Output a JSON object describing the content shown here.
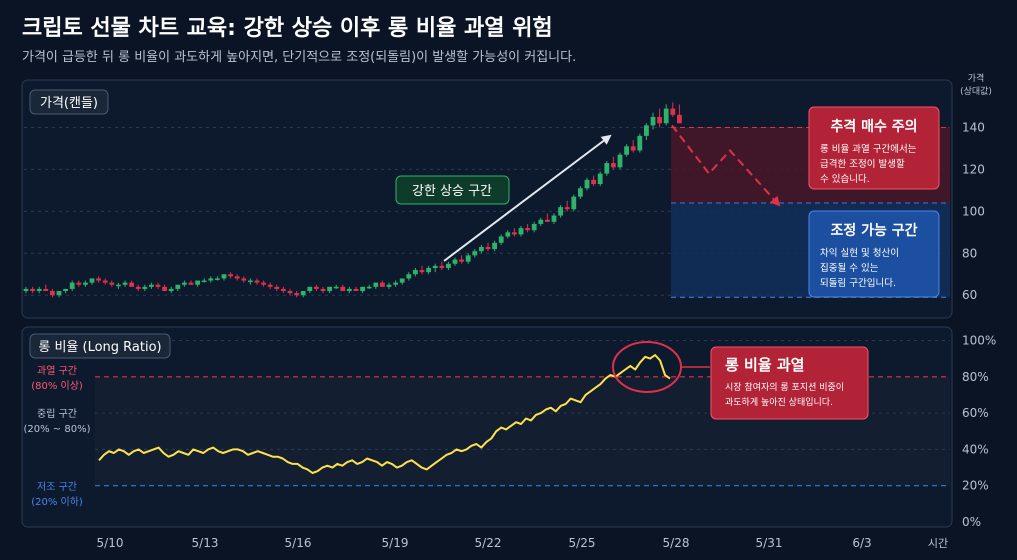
{
  "header": {
    "title": "크립토 선물 차트 교육: 강한 상승 이후 롱 비율 과열 위험",
    "subtitle": "가격이 급등한 뒤 롱 비율이 과도하게 높아지면, 단기적으로 조정(되돌림)이 발생할 가능성이 커집니다."
  },
  "colors": {
    "background": "#0b1424",
    "up_candle": "#2fb36b",
    "down_candle": "#e0314a",
    "ratio_line": "#ffe14d",
    "overheat": "#e0314a",
    "support": "#3a7bd5"
  },
  "chart_data": [
    {
      "type": "candlestick",
      "panel_label": "가격(캔들)",
      "y_axis_title": [
        "가격",
        "(상대값)"
      ],
      "ylim": [
        52,
        155
      ],
      "y_ticks": [
        60,
        80,
        100,
        120,
        140
      ],
      "x_ticks": [
        "5/10",
        "5/13",
        "5/16",
        "5/19",
        "5/22",
        "5/25",
        "5/28",
        "5/31",
        "6/3"
      ],
      "x_axis_title": "시간",
      "rise_label": "강한 상승 구간",
      "overheat_line": 140,
      "support_line": 59,
      "zone_boundary": 104,
      "forecast_path": [
        141,
        118,
        129,
        103
      ],
      "callouts": [
        {
          "title": "추격 매수 주의",
          "text": [
            "롱 비율 과열 구간에서는",
            "급격한 조정이 발생할",
            "수 있습니다."
          ]
        },
        {
          "title": "조정 가능 구간",
          "text": [
            "차익 실현 및 청산이",
            "집중될 수 있는",
            "되돌림 구간입니다."
          ]
        }
      ],
      "candles": [
        [
          62,
          64,
          61,
          63
        ],
        [
          63,
          64,
          61,
          62
        ],
        [
          62,
          64,
          61,
          63
        ],
        [
          63,
          65,
          62,
          62
        ],
        [
          62,
          63,
          59,
          60
        ],
        [
          60,
          62,
          59,
          62
        ],
        [
          62,
          63,
          61,
          63
        ],
        [
          63,
          67,
          62,
          66
        ],
        [
          66,
          67,
          64,
          65
        ],
        [
          65,
          67,
          64,
          66
        ],
        [
          66,
          68,
          65,
          68
        ],
        [
          68,
          69,
          66,
          67
        ],
        [
          67,
          68,
          65,
          66
        ],
        [
          66,
          67,
          64,
          65
        ],
        [
          65,
          66,
          63,
          65
        ],
        [
          65,
          67,
          64,
          66
        ],
        [
          66,
          67,
          64,
          64
        ],
        [
          64,
          65,
          62,
          63
        ],
        [
          63,
          65,
          62,
          64
        ],
        [
          64,
          66,
          63,
          65
        ],
        [
          65,
          66,
          63,
          64
        ],
        [
          64,
          65,
          62,
          62
        ],
        [
          62,
          64,
          61,
          63
        ],
        [
          63,
          65,
          62,
          65
        ],
        [
          65,
          67,
          64,
          66
        ],
        [
          66,
          67,
          65,
          65
        ],
        [
          65,
          67,
          64,
          67
        ],
        [
          67,
          68,
          66,
          67
        ],
        [
          67,
          69,
          66,
          68
        ],
        [
          68,
          69,
          67,
          68
        ],
        [
          68,
          70,
          67,
          70
        ],
        [
          70,
          71,
          68,
          69
        ],
        [
          69,
          70,
          67,
          68
        ],
        [
          68,
          69,
          66,
          67
        ],
        [
          67,
          68,
          65,
          67
        ],
        [
          67,
          68,
          65,
          66
        ],
        [
          66,
          67,
          64,
          65
        ],
        [
          65,
          66,
          63,
          64
        ],
        [
          64,
          65,
          62,
          63
        ],
        [
          63,
          64,
          61,
          62
        ],
        [
          62,
          63,
          60,
          61
        ],
        [
          61,
          62,
          59,
          60
        ],
        [
          60,
          62,
          59,
          62
        ],
        [
          62,
          64,
          61,
          64
        ],
        [
          64,
          65,
          62,
          63
        ],
        [
          63,
          64,
          61,
          62
        ],
        [
          62,
          64,
          61,
          64
        ],
        [
          64,
          65,
          63,
          64
        ],
        [
          64,
          65,
          62,
          62
        ],
        [
          62,
          64,
          61,
          63
        ],
        [
          63,
          64,
          62,
          62
        ],
        [
          62,
          64,
          61,
          64
        ],
        [
          64,
          65,
          63,
          64
        ],
        [
          64,
          66,
          63,
          66
        ],
        [
          66,
          67,
          64,
          64
        ],
        [
          64,
          66,
          63,
          65
        ],
        [
          65,
          67,
          64,
          66
        ],
        [
          66,
          68,
          65,
          68
        ],
        [
          68,
          71,
          67,
          70
        ],
        [
          70,
          73,
          69,
          72
        ],
        [
          72,
          74,
          70,
          71
        ],
        [
          71,
          74,
          70,
          73
        ],
        [
          73,
          75,
          71,
          74
        ],
        [
          74,
          76,
          72,
          73
        ],
        [
          73,
          76,
          72,
          75
        ],
        [
          75,
          78,
          74,
          77
        ],
        [
          77,
          79,
          75,
          76
        ],
        [
          76,
          80,
          75,
          79
        ],
        [
          79,
          82,
          78,
          81
        ],
        [
          81,
          84,
          80,
          83
        ],
        [
          83,
          85,
          81,
          82
        ],
        [
          82,
          86,
          81,
          85
        ],
        [
          85,
          89,
          84,
          88
        ],
        [
          88,
          91,
          87,
          90
        ],
        [
          90,
          92,
          88,
          89
        ],
        [
          89,
          93,
          88,
          92
        ],
        [
          92,
          94,
          90,
          91
        ],
        [
          91,
          95,
          90,
          94
        ],
        [
          94,
          97,
          93,
          96
        ],
        [
          96,
          99,
          95,
          95
        ],
        [
          95,
          99,
          94,
          98
        ],
        [
          98,
          103,
          97,
          102
        ],
        [
          102,
          105,
          100,
          101
        ],
        [
          101,
          108,
          100,
          107
        ],
        [
          107,
          112,
          106,
          111
        ],
        [
          111,
          116,
          110,
          115
        ],
        [
          115,
          117,
          112,
          113
        ],
        [
          113,
          119,
          112,
          118
        ],
        [
          118,
          124,
          117,
          123
        ],
        [
          123,
          126,
          120,
          121
        ],
        [
          121,
          128,
          120,
          127
        ],
        [
          127,
          132,
          126,
          131
        ],
        [
          131,
          134,
          128,
          129
        ],
        [
          129,
          137,
          128,
          136
        ],
        [
          136,
          142,
          134,
          141
        ],
        [
          141,
          147,
          139,
          145
        ],
        [
          145,
          149,
          140,
          142
        ],
        [
          142,
          151,
          141,
          149
        ],
        [
          149,
          152,
          145,
          146
        ],
        [
          146,
          151,
          142,
          142
        ]
      ]
    },
    {
      "type": "line",
      "panel_label": "롱 비율 (Long Ratio)",
      "ylim": [
        0,
        100
      ],
      "y_ticks": [
        "0%",
        "20%",
        "40%",
        "60%",
        "80%",
        "100%"
      ],
      "overheat_threshold": 80,
      "low_threshold": 20,
      "zone_labels": {
        "high": [
          "과열 구간",
          "(80% 이상)"
        ],
        "mid": [
          "중립 구간",
          "(20% ~ 80%)"
        ],
        "low": [
          "저조 구간",
          "(20% 이하)"
        ]
      },
      "callout": {
        "title": "롱 비율 과열",
        "text": [
          "시장 참여자의 롱 포지션 비중이",
          "과도하게 높아진 상태입니다."
        ]
      },
      "values": [
        34,
        37,
        39,
        38,
        40,
        39,
        37,
        39,
        40,
        38,
        39,
        40,
        41,
        38,
        36,
        37,
        39,
        38,
        37,
        40,
        39,
        38,
        40,
        41,
        39,
        38,
        39,
        40,
        40,
        39,
        37,
        38,
        39,
        38,
        37,
        36,
        36,
        35,
        33,
        32,
        32,
        30,
        29,
        27,
        28,
        30,
        31,
        30,
        32,
        31,
        33,
        34,
        32,
        33,
        35,
        34,
        33,
        31,
        33,
        32,
        30,
        31,
        33,
        34,
        32,
        30,
        29,
        31,
        33,
        35,
        37,
        38,
        40,
        39,
        40,
        42,
        43,
        41,
        44,
        46,
        50,
        52,
        51,
        53,
        55,
        54,
        57,
        56,
        59,
        60,
        62,
        63,
        61,
        64,
        65,
        68,
        67,
        66,
        70,
        72,
        74,
        76,
        79,
        81,
        80,
        82,
        84,
        86,
        84,
        88,
        91,
        90,
        92,
        89,
        81,
        79
      ]
    }
  ]
}
